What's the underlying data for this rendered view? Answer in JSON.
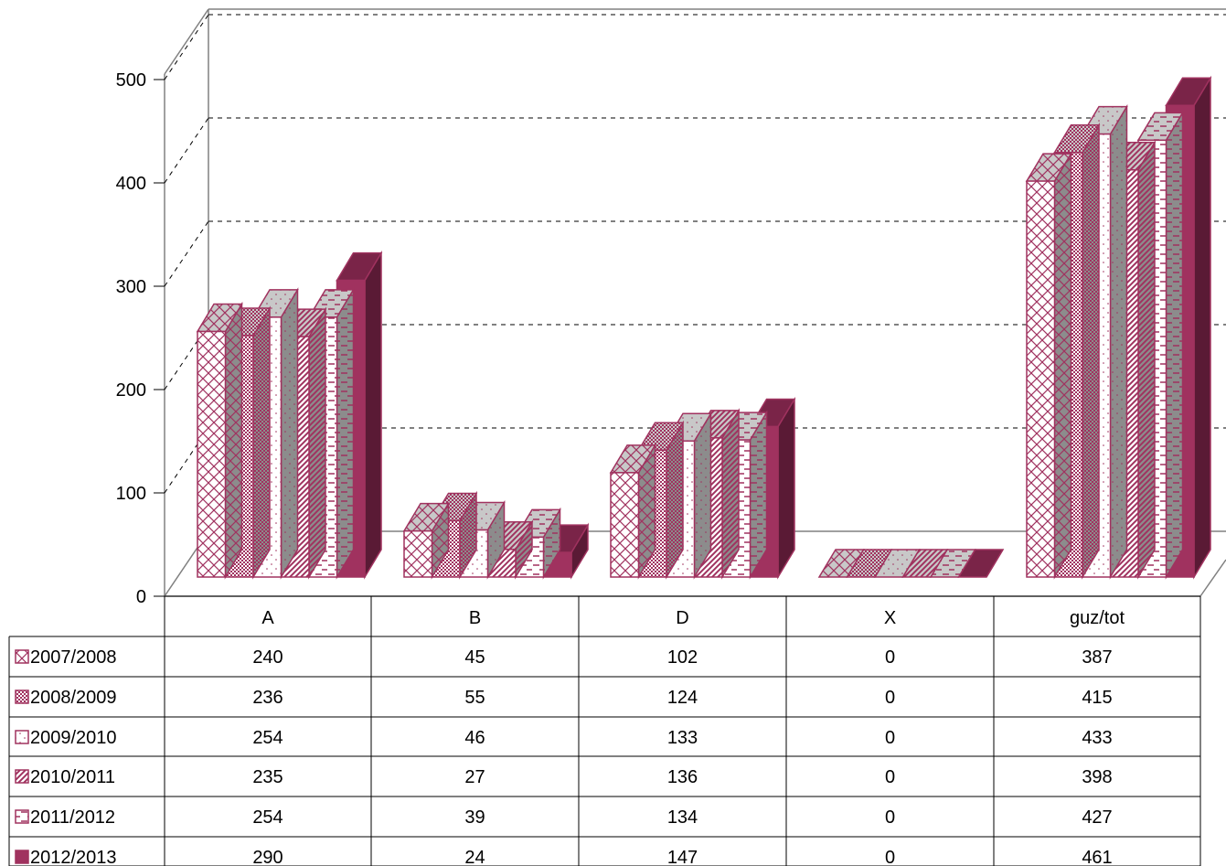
{
  "chart_data": {
    "type": "bar",
    "three_d": true,
    "categories": [
      "A",
      "B",
      "D",
      "X",
      "guz/tot"
    ],
    "series": [
      {
        "name": "2007/2008",
        "values": [
          240,
          45,
          102,
          0,
          387
        ],
        "pattern": "crosshatch"
      },
      {
        "name": "2008/2009",
        "values": [
          236,
          55,
          124,
          0,
          415
        ],
        "pattern": "dense-dots"
      },
      {
        "name": "2009/2010",
        "values": [
          254,
          46,
          133,
          0,
          433
        ],
        "pattern": "sparse-dots"
      },
      {
        "name": "2010/2011",
        "values": [
          235,
          27,
          136,
          0,
          398
        ],
        "pattern": "diagonal-stripes"
      },
      {
        "name": "2011/2012",
        "values": [
          254,
          39,
          134,
          0,
          427
        ],
        "pattern": "dashes"
      },
      {
        "name": "2012/2013",
        "values": [
          290,
          24,
          147,
          0,
          461
        ],
        "pattern": "solid"
      }
    ],
    "yticks": [
      0,
      100,
      200,
      300,
      400,
      500
    ],
    "ylim": [
      0,
      500
    ],
    "grid": true,
    "legend": "data-table-left",
    "colors": {
      "bar": "#a0325f",
      "bar_dark": "#5a1a35",
      "bar_top": "#7a2448",
      "pattern_top": "#c8c8c8",
      "pattern_side": "#8c8c8c",
      "wall": "#808080"
    }
  }
}
